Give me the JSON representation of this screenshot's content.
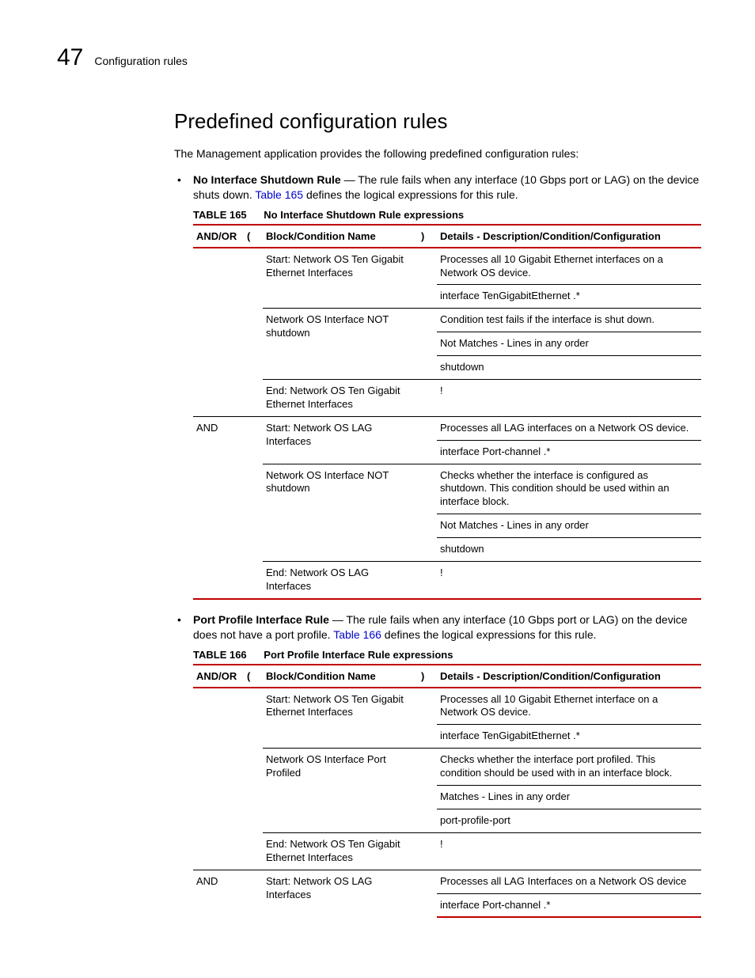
{
  "colors": {
    "accent": "#c00000",
    "link": "#0000d0",
    "text": "#000000",
    "background": "#ffffff",
    "rule": "#000000"
  },
  "typography": {
    "body_font": "Arial",
    "body_size_pt": 10.5,
    "heading_size_pt": 20,
    "table_size_pt": 9.5
  },
  "header": {
    "chapter_number": "47",
    "chapter_title": "Configuration rules"
  },
  "section": {
    "title": "Predefined configuration rules",
    "intro": "The Management application provides the following predefined configuration rules:"
  },
  "bullets": [
    {
      "lead": "No Interface Shutdown Rule",
      "dash": " — ",
      "text_before_link": "The rule fails when any interface (10 Gbps port or LAG) on the device shuts down. ",
      "link_text": "Table 165",
      "text_after_link": " defines the logical expressions for this rule."
    },
    {
      "lead": "Port Profile Interface Rule",
      "dash": " — ",
      "text_before_link": "The rule fails when any interface (10 Gbps port or LAG) on the device does not have a port profile. ",
      "link_text": "Table 166",
      "text_after_link": " defines the logical expressions for this rule."
    }
  ],
  "tables": [
    {
      "label": "TABLE 165",
      "title": "No Interface Shutdown Rule expressions",
      "columns": [
        "AND/OR",
        "(",
        "Block/Condition Name",
        ")",
        "Details - Description/Condition/Configuration"
      ],
      "groups": [
        {
          "andor": "",
          "block": "Start: Network OS Ten Gigabit Ethernet Interfaces",
          "details": [
            "Processes all 10 Gigabit Ethernet interfaces on a Network OS device.",
            "interface TenGigabitEthernet .*"
          ]
        },
        {
          "andor": "",
          "block": "Network OS Interface NOT shutdown",
          "details": [
            "Condition test fails if the interface is shut down.",
            "Not Matches - Lines in any order",
            "shutdown"
          ]
        },
        {
          "andor": "",
          "block": "End: Network OS Ten Gigabit Ethernet Interfaces",
          "details": [
            "!"
          ]
        },
        {
          "andor": "AND",
          "block": "Start: Network OS LAG Interfaces",
          "details": [
            "Processes all LAG interfaces on a Network OS device.",
            "interface Port-channel .*"
          ]
        },
        {
          "andor": "",
          "block": "Network OS Interface NOT shutdown",
          "details": [
            "Checks whether the interface is configured as shutdown. This condition should be used within an interface block.",
            "Not Matches - Lines in any order",
            "shutdown"
          ]
        },
        {
          "andor": "",
          "block": "End: Network OS LAG Interfaces",
          "details": [
            "!"
          ]
        }
      ]
    },
    {
      "label": "TABLE 166",
      "title": "Port Profile Interface Rule expressions",
      "columns": [
        "AND/OR",
        "(",
        "Block/Condition Name",
        ")",
        "Details - Description/Condition/Configuration"
      ],
      "groups": [
        {
          "andor": "",
          "block": "Start: Network OS Ten Gigabit Ethernet Interfaces",
          "details": [
            "Processes all 10 Gigabit Ethernet interface on a Network OS device.",
            "interface TenGigabitEthernet .*"
          ]
        },
        {
          "andor": "",
          "block": "Network OS Interface Port Profiled",
          "details": [
            "Checks whether the interface port profiled. This condition should be used with in an interface block.",
            "Matches - Lines in any order",
            "port-profile-port"
          ]
        },
        {
          "andor": "",
          "block": "End: Network OS Ten Gigabit Ethernet Interfaces",
          "details": [
            "!"
          ]
        },
        {
          "andor": "AND",
          "block": "Start: Network OS LAG Interfaces",
          "details": [
            "Processes all LAG Interfaces on a Network OS device",
            "interface Port-channel .*"
          ]
        }
      ]
    }
  ]
}
